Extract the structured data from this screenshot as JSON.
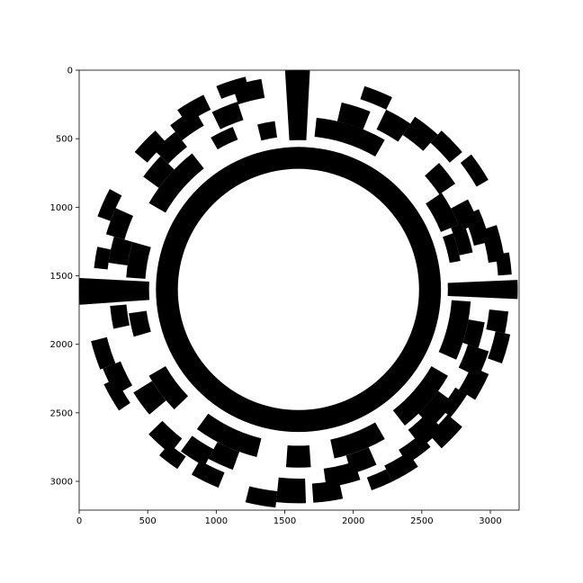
{
  "figure": {
    "kind": "circular-code-image-plot",
    "x_axis": {
      "range": [
        0,
        3210
      ],
      "ticks": [
        0,
        500,
        1000,
        1500,
        2000,
        2500,
        3000
      ],
      "tick_labels": [
        "0",
        "500",
        "1000",
        "1500",
        "2000",
        "2500",
        "3000"
      ]
    },
    "y_axis": {
      "range": [
        0,
        3210
      ],
      "inverted": true,
      "ticks": [
        0,
        500,
        1000,
        1500,
        2000,
        2500,
        3000
      ],
      "tick_labels": [
        "0",
        "500",
        "1000",
        "1500",
        "2000",
        "2500",
        "3000"
      ]
    },
    "colors": {
      "ink": "#000000",
      "paper": "#ffffff"
    },
    "ring": {
      "center": [
        1600,
        1600
      ],
      "inner_radius": 880,
      "outer_radius": 1040
    },
    "data_band": {
      "inner_radius": 1090,
      "outer_radius": 1600
    }
  }
}
